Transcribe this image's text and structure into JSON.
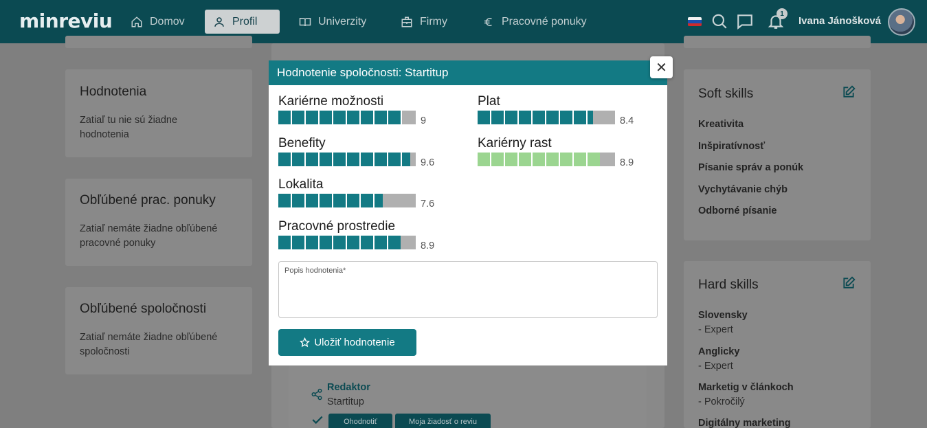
{
  "navbar": {
    "logo": "min⁠reviu",
    "items": [
      {
        "label": "Domov",
        "icon": "home-icon"
      },
      {
        "label": "Profil",
        "icon": "user-icon",
        "active": true
      },
      {
        "label": "Univerzity",
        "icon": "book-icon"
      },
      {
        "label": "Firmy",
        "icon": "building-icon"
      },
      {
        "label": "Pracovné ponuky",
        "icon": "euro-icon"
      }
    ],
    "notification_count": "1",
    "user_name": "Ivana Jánošková"
  },
  "left_cards": [
    {
      "title": "Hodnotenia",
      "text": "Zatiaľ tu nie sú žiadne hodnotenia"
    },
    {
      "title": "Obľúbené prac. ponuky",
      "text": "Zatiaľ nemáte žiadne obľúbené pracovné ponuky"
    },
    {
      "title": "Obľúbené spoločnosti",
      "text": "Zatiaľ nemáte žiadne obľúbené spoločnosti"
    }
  ],
  "soft_skills": {
    "title": "Soft skills",
    "items": [
      "Kreativita",
      "Inšpiratívnosť",
      "Písanie správ a ponúk",
      "Vychytávanie chýb",
      "Odborné písanie"
    ]
  },
  "hard_skills": {
    "title": "Hard skills",
    "items": [
      {
        "name": "Slovensky",
        "level": "- Expert"
      },
      {
        "name": "Anglicky",
        "level": "- Expert"
      },
      {
        "name": "Marketig v článkoch",
        "level": "- Pokročilý"
      },
      {
        "name": "Digitálny marketing",
        "level": ""
      }
    ]
  },
  "job_entry": {
    "position": "Redaktor",
    "company": "Startitup",
    "rate_button": "Ohodnotiť",
    "review_request_button": "Moja žiadosť o reviu"
  },
  "modal": {
    "title": "Hodnotenie spoločnosti: Startitup",
    "ratings": [
      {
        "label": "Kariérne možnosti",
        "value": 9,
        "display": "9",
        "color": "#137a84"
      },
      {
        "label": "Plat",
        "value": 8.4,
        "display": "8.4",
        "color": "#137a84"
      },
      {
        "label": "Benefity",
        "value": 9.6,
        "display": "9.6",
        "color": "#137a84"
      },
      {
        "label": "Kariérny rast",
        "value": 8.9,
        "display": "8.9",
        "color": "#9bd590"
      },
      {
        "label": "Lokalita",
        "value": 7.6,
        "display": "7.6",
        "color": "#137a84"
      },
      {
        "label": "Pracovné prostredie",
        "value": 8.9,
        "display": "8.9",
        "color": "#137a84"
      }
    ],
    "max_value": 10,
    "description_label": "Popis hodnotenia*",
    "save_label": "Uložiť hodnotenie"
  }
}
